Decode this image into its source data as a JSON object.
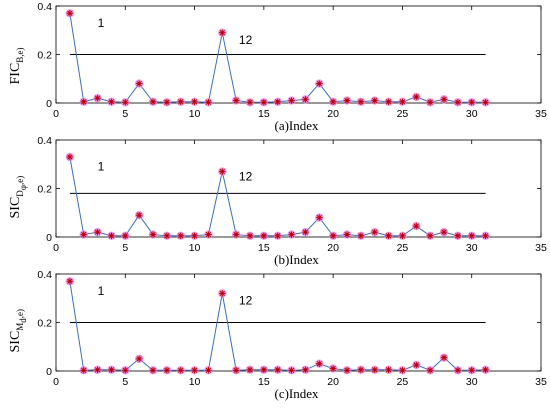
{
  "chart_data": [
    {
      "type": "line",
      "xlabel": "(a)Index",
      "ylabel": {
        "main": "FIC",
        "sub": "B,e",
        "close": ")"
      },
      "xlim": [
        0,
        35
      ],
      "ylim": [
        0,
        0.4
      ],
      "xticks": [
        0,
        5,
        10,
        15,
        20,
        25,
        30,
        35
      ],
      "yticks": [
        0,
        0.2,
        0.4
      ],
      "grid": false,
      "threshold": 0.2,
      "series": [
        {
          "x": [
            1,
            2,
            3,
            4,
            5,
            6,
            7,
            8,
            9,
            10,
            11,
            12,
            13,
            14,
            15,
            16,
            17,
            18,
            19,
            20,
            21,
            22,
            23,
            24,
            25,
            26,
            27,
            28,
            29,
            30,
            31
          ],
          "y": [
            0.37,
            0.005,
            0.02,
            0.005,
            0.003,
            0.08,
            0.005,
            0.003,
            0.005,
            0.005,
            0.003,
            0.29,
            0.01,
            0.003,
            0.003,
            0.005,
            0.01,
            0.015,
            0.08,
            0.005,
            0.01,
            0.005,
            0.01,
            0.005,
            0.005,
            0.025,
            0.003,
            0.015,
            0.003,
            0.003,
            0.003
          ]
        }
      ],
      "annotations": [
        {
          "text": "1",
          "x": 3,
          "y": 0.33
        },
        {
          "text": "12",
          "x": 13.2,
          "y": 0.26
        }
      ]
    },
    {
      "type": "line",
      "xlabel": "(b)Index",
      "ylabel": {
        "main": "SIC",
        "sub": "D",
        "subsub": "φ",
        "sub2": ",e",
        "close": ")"
      },
      "xlim": [
        0,
        35
      ],
      "ylim": [
        0,
        0.4
      ],
      "xticks": [
        0,
        5,
        10,
        15,
        20,
        25,
        30,
        35
      ],
      "yticks": [
        0,
        0.2,
        0.4
      ],
      "grid": false,
      "threshold": 0.18,
      "series": [
        {
          "x": [
            1,
            2,
            3,
            4,
            5,
            6,
            7,
            8,
            9,
            10,
            11,
            12,
            13,
            14,
            15,
            16,
            17,
            18,
            19,
            20,
            21,
            22,
            23,
            24,
            25,
            26,
            27,
            28,
            29,
            30,
            31
          ],
          "y": [
            0.33,
            0.01,
            0.02,
            0.005,
            0.005,
            0.09,
            0.01,
            0.005,
            0.005,
            0.005,
            0.01,
            0.27,
            0.01,
            0.005,
            0.005,
            0.005,
            0.01,
            0.02,
            0.08,
            0.005,
            0.01,
            0.005,
            0.02,
            0.005,
            0.005,
            0.045,
            0.005,
            0.02,
            0.005,
            0.005,
            0.005
          ]
        }
      ],
      "annotations": [
        {
          "text": "1",
          "x": 3,
          "y": 0.29
        },
        {
          "text": "12",
          "x": 13.2,
          "y": 0.25
        }
      ]
    },
    {
      "type": "line",
      "xlabel": "(c)Index",
      "ylabel": {
        "main": "SIC",
        "sub": "M",
        "subsub": "d",
        "sub2": ",e",
        "close": ")"
      },
      "xlim": [
        0,
        35
      ],
      "ylim": [
        0,
        0.4
      ],
      "xticks": [
        0,
        5,
        10,
        15,
        20,
        25,
        30,
        35
      ],
      "yticks": [
        0,
        0.2,
        0.4
      ],
      "grid": false,
      "threshold": 0.2,
      "series": [
        {
          "x": [
            1,
            2,
            3,
            4,
            5,
            6,
            7,
            8,
            9,
            10,
            11,
            12,
            13,
            14,
            15,
            16,
            17,
            18,
            19,
            20,
            21,
            22,
            23,
            24,
            25,
            26,
            27,
            28,
            29,
            30,
            31
          ],
          "y": [
            0.37,
            0.003,
            0.005,
            0.005,
            0.003,
            0.05,
            0.003,
            0.003,
            0.003,
            0.003,
            0.003,
            0.32,
            0.003,
            0.005,
            0.005,
            0.005,
            0.003,
            0.005,
            0.03,
            0.01,
            0.003,
            0.005,
            0.005,
            0.005,
            0.003,
            0.025,
            0.003,
            0.055,
            0.003,
            0.003,
            0.005
          ]
        }
      ],
      "annotations": [
        {
          "text": "1",
          "x": 3,
          "y": 0.33
        },
        {
          "text": "12",
          "x": 13.2,
          "y": 0.29
        }
      ]
    }
  ],
  "colors": {
    "line": "#3a6fb5",
    "threshold": "#000000",
    "marker_halo": "#f07cd8",
    "marker_star": "#b8000c",
    "axis": "#000000"
  }
}
